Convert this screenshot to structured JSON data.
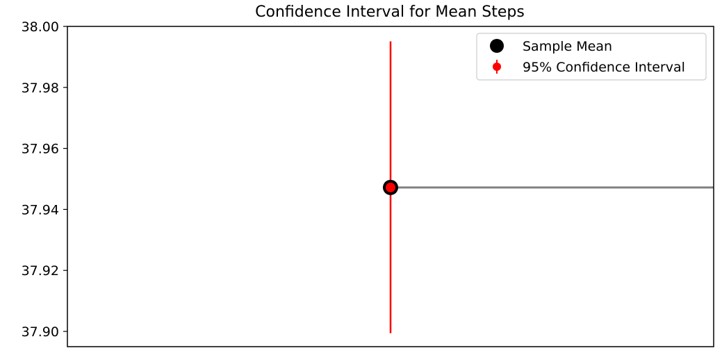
{
  "chart_data": {
    "type": "scatter",
    "title": "Confidence Interval for Mean Steps",
    "xlabel": "",
    "ylabel": "",
    "ylim": [
      37.895,
      38.0
    ],
    "yticks": [
      37.9,
      37.92,
      37.94,
      37.96,
      37.98,
      38.0
    ],
    "ytick_labels": [
      "37.90",
      "37.92",
      "37.94",
      "37.96",
      "37.98",
      "38.00"
    ],
    "grid": false,
    "legend_position": "top-right",
    "sample_mean": 37.9472,
    "ci_lower": 37.8994,
    "ci_upper": 37.9951,
    "series": [
      {
        "name": "Sample Mean",
        "color": "#000000",
        "marker": "circle"
      },
      {
        "name": "95% Confidence Interval",
        "color": "#ff0000",
        "marker": "errorbar"
      }
    ],
    "reference_line": {
      "y": 37.9472,
      "color": "#808080"
    }
  }
}
